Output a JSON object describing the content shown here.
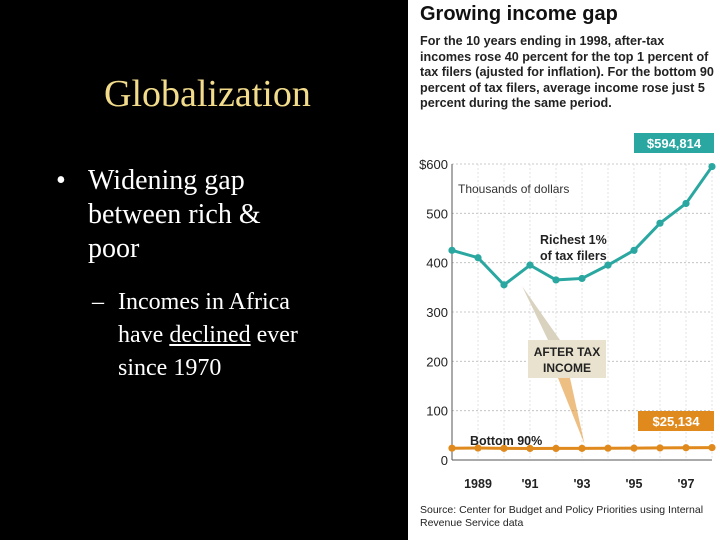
{
  "slide": {
    "title": "Globalization",
    "bullet": "•",
    "bullet_text": "Widening gap between rich & poor",
    "sub_dash": "–",
    "sub_text_1": "Incomes in Africa have ",
    "sub_text_link": "declined",
    "sub_text_2": " ever since 1970"
  },
  "colors": {
    "background": "#000000",
    "title": "#f2dc8c",
    "rich_series": "#2aa7a0",
    "poor_series": "#e08a1e",
    "label_box": "#e9e2cf"
  },
  "chart_data": {
    "type": "line",
    "title": "Growing income gap",
    "subtitle": "For the 10 years ending in 1998, after-tax incomes rose 40 percent for the top 1 percent of tax filers (ajusted for inflation). For the bottom 90 percent of tax filers, average income rose just 5 percent during the same period.",
    "unit_label": "Thousands of dollars",
    "x": [
      1988,
      1989,
      1990,
      1991,
      1992,
      1993,
      1994,
      1995,
      1996,
      1997,
      1998
    ],
    "x_tick_labels": [
      "1989",
      "'91",
      "'93",
      "'95",
      "'97"
    ],
    "x_tick_values": [
      1989,
      1991,
      1993,
      1995,
      1997
    ],
    "ylim": [
      0,
      600
    ],
    "y_ticks": [
      0,
      100,
      200,
      300,
      400,
      500,
      600
    ],
    "y_tick_labels": [
      "0",
      "100",
      "200",
      "300",
      "400",
      "500",
      "$600"
    ],
    "series": [
      {
        "name": "Richest 1% of tax filers",
        "values": [
          425,
          410,
          355,
          395,
          365,
          368,
          395,
          425,
          480,
          520,
          594.814
        ]
      },
      {
        "name": "Bottom 90%",
        "values": [
          23.9,
          24.2,
          23.6,
          23.4,
          23.5,
          23.6,
          23.9,
          24.1,
          24.5,
          24.8,
          25.134
        ]
      }
    ],
    "annotations": {
      "rich_end_value": "$594,814",
      "poor_end_value": "$25,134",
      "after_tax_label": "AFTER TAX INCOME"
    },
    "grid": true,
    "source": "Source: Center for Budget and Policy Priorities using Internal Revenue Service data"
  }
}
